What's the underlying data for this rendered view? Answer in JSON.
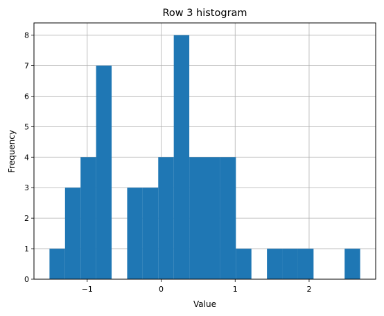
{
  "chart_data": {
    "type": "bar",
    "subtype": "histogram",
    "title": "Row 3 histogram",
    "xlabel": "Value",
    "ylabel": "Frequency",
    "xlim": [
      -1.72,
      2.9
    ],
    "ylim": [
      0,
      8.4
    ],
    "grid": true,
    "bar_color": "#1f77b4",
    "x_ticks": [
      {
        "value": -1,
        "label": "−1"
      },
      {
        "value": 0,
        "label": "0"
      },
      {
        "value": 1,
        "label": "1"
      },
      {
        "value": 2,
        "label": "2"
      }
    ],
    "y_ticks": [
      {
        "value": 0,
        "label": "0"
      },
      {
        "value": 1,
        "label": "1"
      },
      {
        "value": 2,
        "label": "2"
      },
      {
        "value": 3,
        "label": "3"
      },
      {
        "value": 4,
        "label": "4"
      },
      {
        "value": 5,
        "label": "5"
      },
      {
        "value": 6,
        "label": "6"
      },
      {
        "value": 7,
        "label": "7"
      },
      {
        "value": 8,
        "label": "8"
      }
    ],
    "bins": [
      {
        "start": -1.51,
        "end": -1.3,
        "count": 1
      },
      {
        "start": -1.3,
        "end": -1.09,
        "count": 3
      },
      {
        "start": -1.09,
        "end": -0.88,
        "count": 4
      },
      {
        "start": -0.88,
        "end": -0.67,
        "count": 7
      },
      {
        "start": -0.67,
        "end": -0.46,
        "count": 0
      },
      {
        "start": -0.46,
        "end": -0.25,
        "count": 3
      },
      {
        "start": -0.25,
        "end": -0.04,
        "count": 3
      },
      {
        "start": -0.04,
        "end": 0.17,
        "count": 4
      },
      {
        "start": 0.17,
        "end": 0.38,
        "count": 8
      },
      {
        "start": 0.38,
        "end": 0.59,
        "count": 4
      },
      {
        "start": 0.59,
        "end": 0.8,
        "count": 4
      },
      {
        "start": 0.8,
        "end": 1.01,
        "count": 4
      },
      {
        "start": 1.01,
        "end": 1.22,
        "count": 1
      },
      {
        "start": 1.22,
        "end": 1.43,
        "count": 0
      },
      {
        "start": 1.43,
        "end": 1.64,
        "count": 1
      },
      {
        "start": 1.64,
        "end": 1.85,
        "count": 1
      },
      {
        "start": 1.85,
        "end": 2.06,
        "count": 1
      },
      {
        "start": 2.06,
        "end": 2.27,
        "count": 0
      },
      {
        "start": 2.27,
        "end": 2.48,
        "count": 0
      },
      {
        "start": 2.48,
        "end": 2.69,
        "count": 1
      }
    ]
  }
}
